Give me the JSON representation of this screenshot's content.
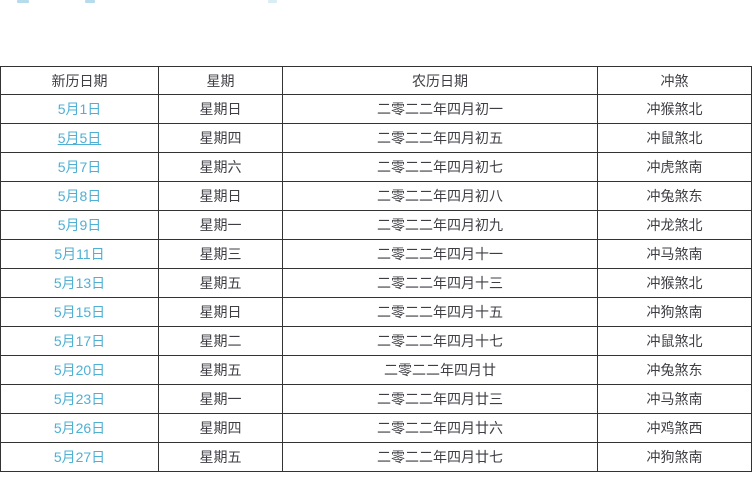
{
  "page": {
    "background": "#ffffff"
  },
  "table": {
    "headers": [
      "新历日期",
      "星期",
      "农历日期",
      "冲煞"
    ],
    "rows": [
      {
        "date": "5月1日",
        "weekday": "星期日",
        "lunar": "二零二二年四月初一",
        "clash": "冲猴煞北",
        "underlined": false
      },
      {
        "date": "5月5日",
        "weekday": "星期四",
        "lunar": "二零二二年四月初五",
        "clash": "冲鼠煞北",
        "underlined": true
      },
      {
        "date": "5月7日",
        "weekday": "星期六",
        "lunar": "二零二二年四月初七",
        "clash": "冲虎煞南",
        "underlined": false
      },
      {
        "date": "5月8日",
        "weekday": "星期日",
        "lunar": "二零二二年四月初八",
        "clash": "冲兔煞东",
        "underlined": false
      },
      {
        "date": "5月9日",
        "weekday": "星期一",
        "lunar": "二零二二年四月初九",
        "clash": "冲龙煞北",
        "underlined": false
      },
      {
        "date": "5月11日",
        "weekday": "星期三",
        "lunar": "二零二二年四月十一",
        "clash": "冲马煞南",
        "underlined": false
      },
      {
        "date": "5月13日",
        "weekday": "星期五",
        "lunar": "二零二二年四月十三",
        "clash": "冲猴煞北",
        "underlined": false
      },
      {
        "date": "5月15日",
        "weekday": "星期日",
        "lunar": "二零二二年四月十五",
        "clash": "冲狗煞南",
        "underlined": false
      },
      {
        "date": "5月17日",
        "weekday": "星期二",
        "lunar": "二零二二年四月十七",
        "clash": "冲鼠煞北",
        "underlined": false
      },
      {
        "date": "5月20日",
        "weekday": "星期五",
        "lunar": "二零二二年四月廿",
        "clash": "冲兔煞东",
        "underlined": false
      },
      {
        "date": "5月23日",
        "weekday": "星期一",
        "lunar": "二零二二年四月廿三",
        "clash": "冲马煞南",
        "underlined": false
      },
      {
        "date": "5月26日",
        "weekday": "星期四",
        "lunar": "二零二二年四月廿六",
        "clash": "冲鸡煞西",
        "underlined": false
      },
      {
        "date": "5月27日",
        "weekday": "星期五",
        "lunar": "二零二二年四月廿七",
        "clash": "冲狗煞南",
        "underlined": false
      }
    ],
    "colors": {
      "border": "#333333",
      "text": "#3e3e44",
      "link": "#4fb0d4"
    }
  }
}
